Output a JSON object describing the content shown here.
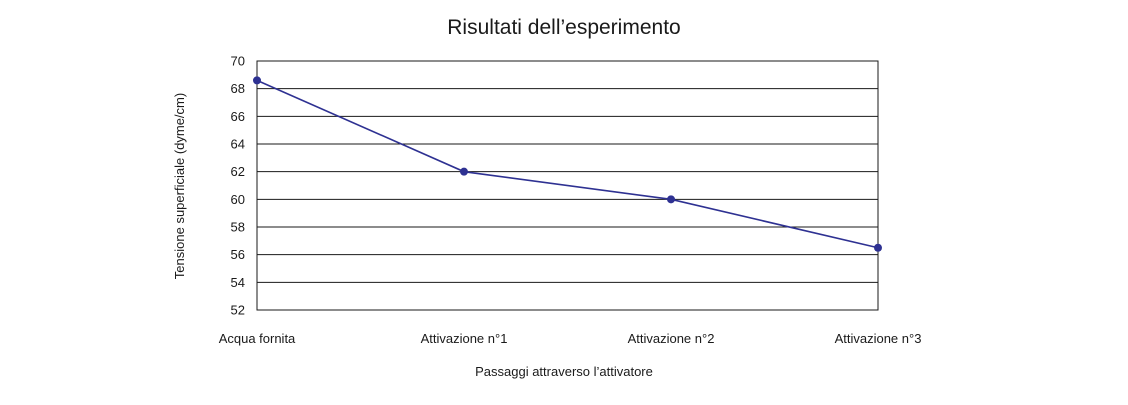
{
  "chart_data": {
    "type": "line",
    "title": "Risultati dell’esperimento",
    "xlabel": "Passaggi attraverso l’attivatore",
    "ylabel": "Tensione superficiale (dyme/cm)",
    "categories": [
      "Acqua fornita",
      "Attivazione n°1",
      "Attivazione n°2",
      "Attivazione n°3"
    ],
    "series": [
      {
        "values": [
          68.6,
          62.0,
          60.0,
          56.5
        ]
      }
    ],
    "ylim": [
      52,
      70
    ],
    "yticks": [
      52,
      54,
      56,
      58,
      60,
      62,
      64,
      66,
      68,
      70
    ],
    "grid": true,
    "legend": "none",
    "colors": {
      "series": "#2e3192",
      "grid": "#1a1a1a"
    }
  }
}
